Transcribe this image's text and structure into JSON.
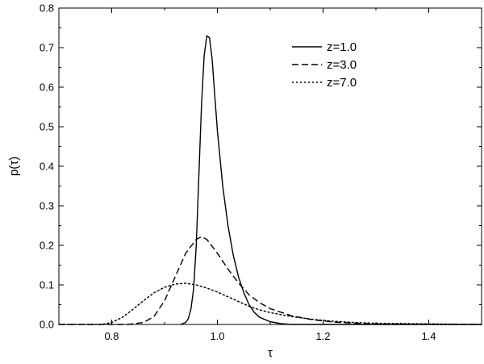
{
  "chart_data": {
    "type": "line",
    "title": "",
    "xlabel": "τ",
    "ylabel": "p(τ)",
    "xlim": [
      0.7,
      1.5
    ],
    "ylim": [
      0.0,
      0.8
    ],
    "x_ticks": [
      "0.8",
      "1.0",
      "1.2",
      "1.4"
    ],
    "y_ticks": [
      "0.0",
      "0.1",
      "0.2",
      "0.3",
      "0.4",
      "0.5",
      "0.6",
      "0.7",
      "0.8"
    ],
    "grid": false,
    "legend_position": "top-right",
    "series": [
      {
        "name": "z=1.0",
        "style": "solid",
        "x": [
          0.93,
          0.94,
          0.945,
          0.95,
          0.955,
          0.96,
          0.965,
          0.97,
          0.975,
          0.98,
          0.985,
          0.99,
          0.995,
          1.0,
          1.005,
          1.01,
          1.02,
          1.03,
          1.04,
          1.05,
          1.06,
          1.07,
          1.08,
          1.1,
          1.12,
          1.14,
          1.5
        ],
        "y": [
          0.0,
          0.005,
          0.015,
          0.04,
          0.09,
          0.2,
          0.38,
          0.56,
          0.68,
          0.73,
          0.725,
          0.67,
          0.58,
          0.49,
          0.42,
          0.35,
          0.25,
          0.175,
          0.12,
          0.08,
          0.05,
          0.03,
          0.018,
          0.007,
          0.002,
          0.0,
          0.0
        ]
      },
      {
        "name": "z=3.0",
        "style": "dashed",
        "x": [
          0.7,
          0.83,
          0.86,
          0.88,
          0.9,
          0.92,
          0.94,
          0.96,
          0.97,
          0.98,
          1.0,
          1.02,
          1.04,
          1.06,
          1.08,
          1.1,
          1.14,
          1.18,
          1.22,
          1.26,
          1.3,
          1.5
        ],
        "y": [
          0.0,
          0.0,
          0.005,
          0.02,
          0.06,
          0.12,
          0.18,
          0.215,
          0.222,
          0.215,
          0.18,
          0.14,
          0.105,
          0.075,
          0.055,
          0.04,
          0.022,
          0.012,
          0.006,
          0.003,
          0.001,
          0.0
        ]
      },
      {
        "name": "z=7.0",
        "style": "dotted",
        "x": [
          0.7,
          0.78,
          0.8,
          0.82,
          0.84,
          0.86,
          0.88,
          0.9,
          0.92,
          0.94,
          0.96,
          0.98,
          1.0,
          1.02,
          1.04,
          1.06,
          1.08,
          1.1,
          1.14,
          1.18,
          1.22,
          1.26,
          1.3,
          1.5
        ],
        "y": [
          0.0,
          0.0,
          0.005,
          0.018,
          0.038,
          0.06,
          0.08,
          0.094,
          0.102,
          0.104,
          0.1,
          0.092,
          0.082,
          0.07,
          0.058,
          0.046,
          0.037,
          0.03,
          0.02,
          0.013,
          0.008,
          0.005,
          0.003,
          0.0
        ]
      }
    ]
  }
}
